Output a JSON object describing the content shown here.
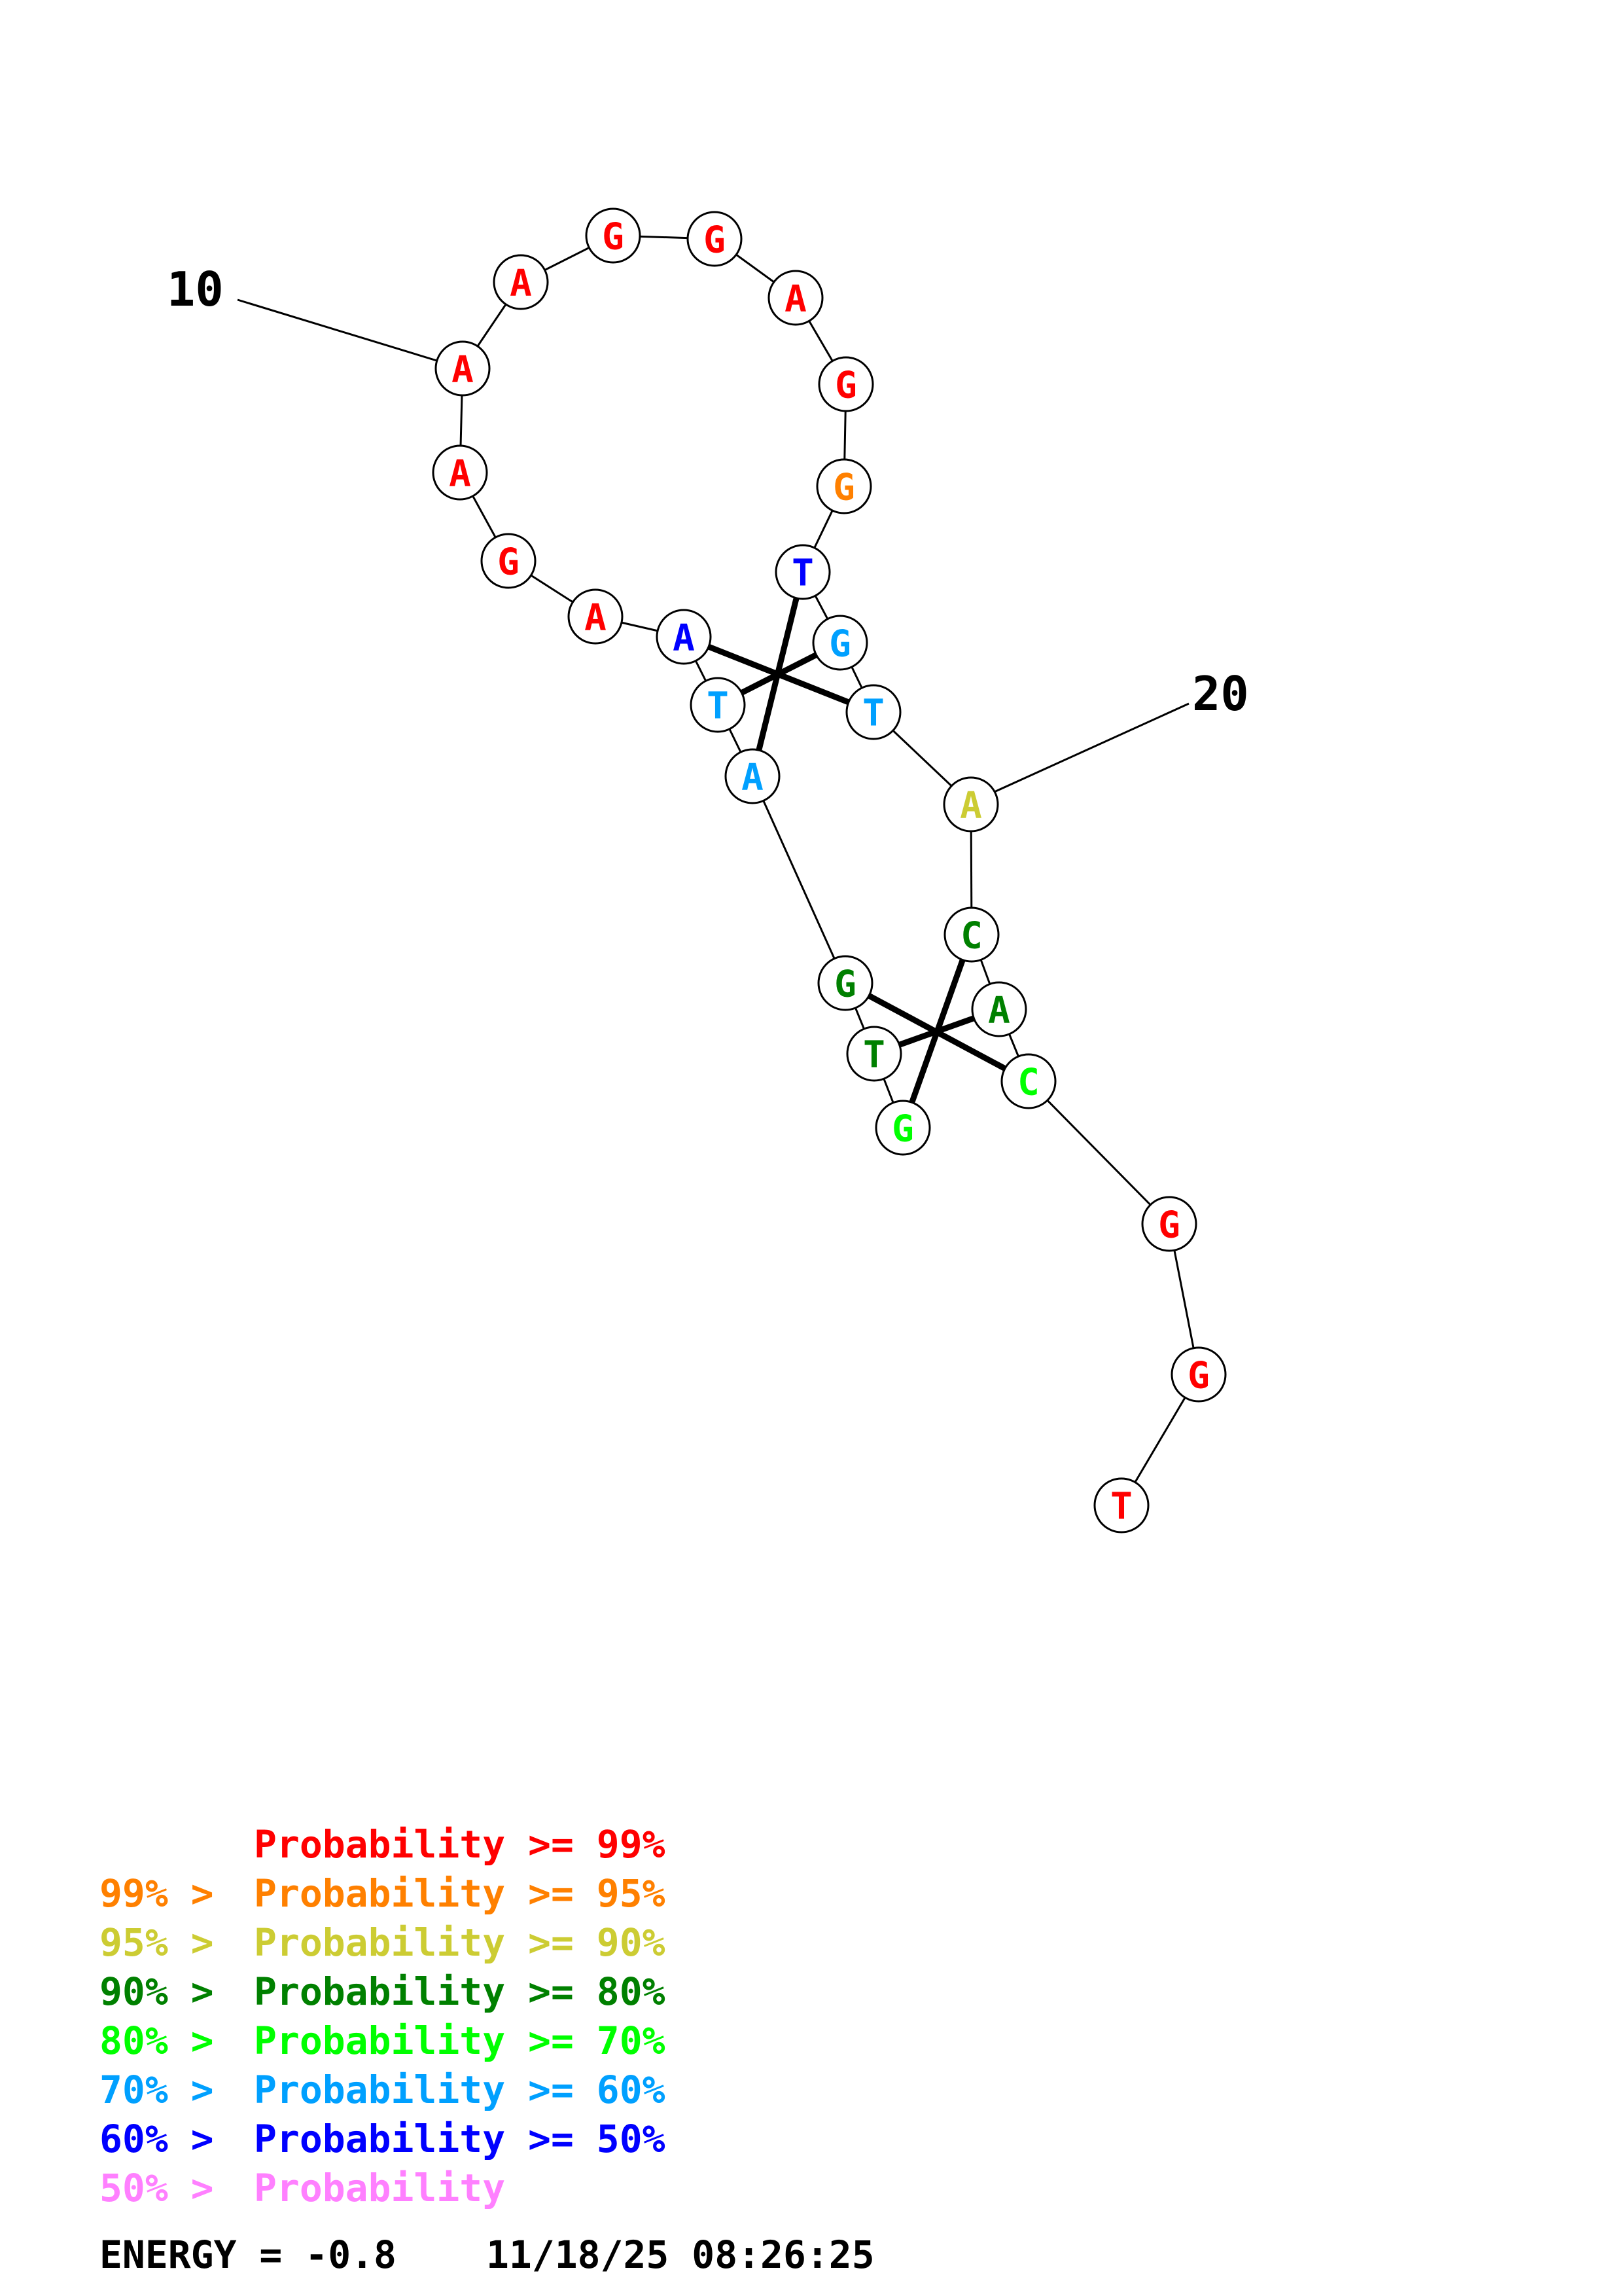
{
  "colors": {
    "p99": "#ff0000",
    "p95": "#ff8000",
    "p90": "#cccc33",
    "p80": "#008000",
    "p70": "#00ff00",
    "p60": "#00a0ff",
    "p50": "#0000ff",
    "plow": "#ff80ff"
  },
  "structure": {
    "position_labels": [
      "10",
      "20"
    ],
    "nucleotides": [
      {
        "base": "T",
        "level": "p99"
      },
      {
        "base": "G",
        "level": "p99"
      },
      {
        "base": "G",
        "level": "p99"
      },
      {
        "base": "C",
        "level": "p70"
      },
      {
        "base": "A",
        "level": "p80"
      },
      {
        "base": "C",
        "level": "p80"
      },
      {
        "base": "A",
        "level": "p90"
      },
      {
        "base": "T",
        "level": "p60"
      },
      {
        "base": "G",
        "level": "p60"
      },
      {
        "base": "T",
        "level": "p50"
      },
      {
        "base": "G",
        "level": "p95"
      },
      {
        "base": "G",
        "level": "p99"
      },
      {
        "base": "A",
        "level": "p99"
      },
      {
        "base": "G",
        "level": "p99"
      },
      {
        "base": "G",
        "level": "p99"
      },
      {
        "base": "A",
        "level": "p99"
      },
      {
        "base": "A",
        "level": "p99"
      },
      {
        "base": "A",
        "level": "p99"
      },
      {
        "base": "G",
        "level": "p99"
      },
      {
        "base": "A",
        "level": "p99"
      },
      {
        "base": "A",
        "level": "p50"
      },
      {
        "base": "T",
        "level": "p60"
      },
      {
        "base": "A",
        "level": "p60"
      },
      {
        "base": "G",
        "level": "p80"
      },
      {
        "base": "T",
        "level": "p80"
      },
      {
        "base": "G",
        "level": "p70"
      }
    ],
    "pairs": [
      [
        8,
        21
      ],
      [
        9,
        22
      ],
      [
        10,
        23
      ],
      [
        4,
        24
      ],
      [
        5,
        25
      ],
      [
        6,
        26
      ]
    ]
  },
  "legend": [
    {
      "prefix": "    ",
      "text": "Probability >= 99%",
      "level": "p99"
    },
    {
      "prefix": "99% > ",
      "text": "Probability >= 95%",
      "level": "p95"
    },
    {
      "prefix": "95% > ",
      "text": "Probability >= 90%",
      "level": "p90"
    },
    {
      "prefix": "90% > ",
      "text": "Probability >= 80%",
      "level": "p80"
    },
    {
      "prefix": "80% > ",
      "text": "Probability >= 70%",
      "level": "p70"
    },
    {
      "prefix": "70% > ",
      "text": "Probability >= 60%",
      "level": "p60"
    },
    {
      "prefix": "60% > ",
      "text": "Probability >= 50%",
      "level": "p50"
    },
    {
      "prefix": "50% > ",
      "text": "Probability",
      "level": "plow"
    }
  ],
  "energy": {
    "label": "ENERGY = -0.8",
    "timestamp": "11/18/25 08:26:25"
  }
}
